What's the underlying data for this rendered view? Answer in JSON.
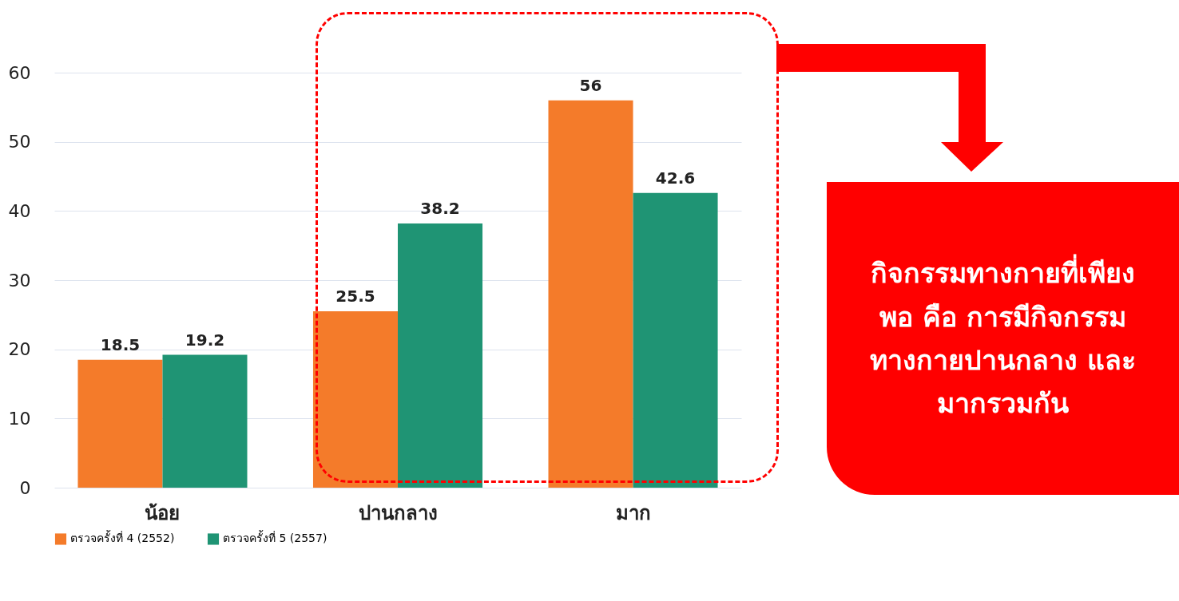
{
  "chart_data": {
    "type": "bar",
    "categories": [
      "น้อย",
      "ปานกลาง",
      "มาก"
    ],
    "series": [
      {
        "name": "ตรวจครั้งที่ 4 (2552)",
        "color": "#f47b2a",
        "values": [
          18.5,
          25.5,
          56
        ]
      },
      {
        "name": "ตรวจครั้งที่ 5 (2557)",
        "color": "#1f9474",
        "values": [
          19.2,
          38.2,
          42.6
        ]
      }
    ],
    "ylim": [
      0,
      60
    ],
    "yticks": [
      0,
      10,
      20,
      30,
      40,
      50,
      60
    ],
    "grid": "y",
    "legend": "bottom",
    "data_labels": true,
    "annotations": [
      "กิจกรรมทางกายที่เพียงพอ คือ การมีกิจกรรมทางกายปานกลาง และมากรวมกัน"
    ]
  }
}
